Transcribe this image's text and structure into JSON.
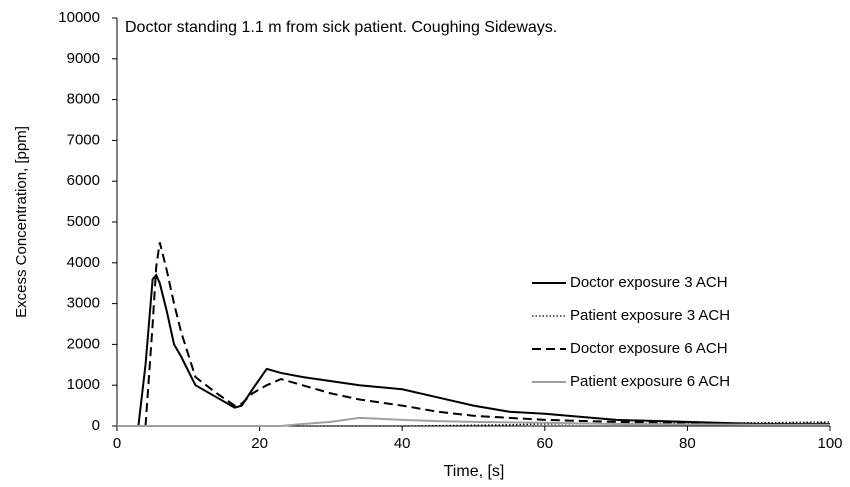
{
  "chart_data": {
    "type": "line",
    "title": "Doctor standing 1.1 m from sick patient. Coughing Sideways.",
    "x_label": "Time, [s]",
    "y_label": "Excess Concentration, [ppm]",
    "x": [
      0,
      3,
      4,
      5,
      5.5,
      6,
      7,
      8,
      9,
      11,
      14,
      16.5,
      17.5,
      19,
      21,
      23,
      26,
      30,
      34,
      40,
      45,
      50,
      55,
      60,
      70,
      80,
      90,
      100
    ],
    "series": [
      {
        "name": "Doctor exposure 3 ACH",
        "color": "#000000",
        "dash": "solid",
        "values": [
          null,
          0,
          1500,
          3600,
          3700,
          3500,
          2800,
          2000,
          1700,
          1000,
          700,
          450,
          500,
          900,
          1400,
          1300,
          1200,
          1100,
          1000,
          900,
          700,
          500,
          350,
          300,
          150,
          100,
          50,
          50
        ]
      },
      {
        "name": "Patient exposure 3 ACH",
        "color": "#000000",
        "dash": "dotted",
        "values": [
          0,
          0,
          0,
          0,
          0,
          0,
          0,
          0,
          0,
          0,
          0,
          0,
          0,
          0,
          0,
          0,
          0,
          0,
          0,
          0,
          10,
          20,
          30,
          50,
          60,
          70,
          80,
          100
        ]
      },
      {
        "name": "Doctor exposure 6 ACH",
        "color": "#000000",
        "dash": "dashed",
        "values": [
          null,
          null,
          0,
          2500,
          3900,
          4500,
          3800,
          3000,
          2300,
          1200,
          800,
          500,
          550,
          800,
          1000,
          1150,
          1000,
          800,
          650,
          500,
          350,
          250,
          200,
          150,
          100,
          80,
          50,
          60
        ]
      },
      {
        "name": "Patient exposure 6 ACH",
        "color": "#a0a0a0",
        "dash": "solid",
        "values": [
          0,
          0,
          0,
          0,
          0,
          0,
          0,
          0,
          0,
          0,
          0,
          0,
          0,
          0,
          0,
          0,
          50,
          100,
          200,
          150,
          120,
          100,
          90,
          80,
          50,
          40,
          30,
          30
        ]
      }
    ],
    "xlim": [
      0,
      100
    ],
    "xticks": [
      0,
      20,
      40,
      60,
      80,
      100
    ],
    "ylim": [
      0,
      10000
    ],
    "yticks": [
      0,
      1000,
      2000,
      3000,
      4000,
      5000,
      6000,
      7000,
      8000,
      9000,
      10000
    ],
    "grid": false,
    "legend": "right"
  }
}
